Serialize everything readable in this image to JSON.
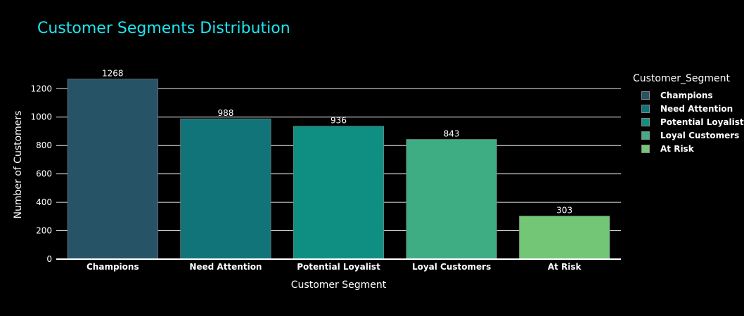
{
  "chart_data": {
    "type": "bar",
    "title": "Customer Segments Distribution",
    "xlabel": "Customer Segment",
    "ylabel": "Number of Customers",
    "categories": [
      "Champions",
      "Need Attention",
      "Potential Loyalist",
      "Loyal Customers",
      "At Risk"
    ],
    "values": [
      1268,
      988,
      936,
      843,
      303
    ],
    "colors": [
      "#265466",
      "#117479",
      "#0f8f82",
      "#3fad84",
      "#72c676"
    ],
    "ylim": [
      0,
      1330
    ],
    "yticks": [
      0,
      200,
      400,
      600,
      800,
      1000,
      1200
    ],
    "grid": true,
    "legend": {
      "title": "Customer_Segment",
      "placement": "right",
      "entries": [
        "Champions",
        "Need Attention",
        "Potential Loyalist",
        "Loyal Customers",
        "At Risk"
      ]
    },
    "title_color": "#1fe5f0",
    "background": "#000000"
  }
}
